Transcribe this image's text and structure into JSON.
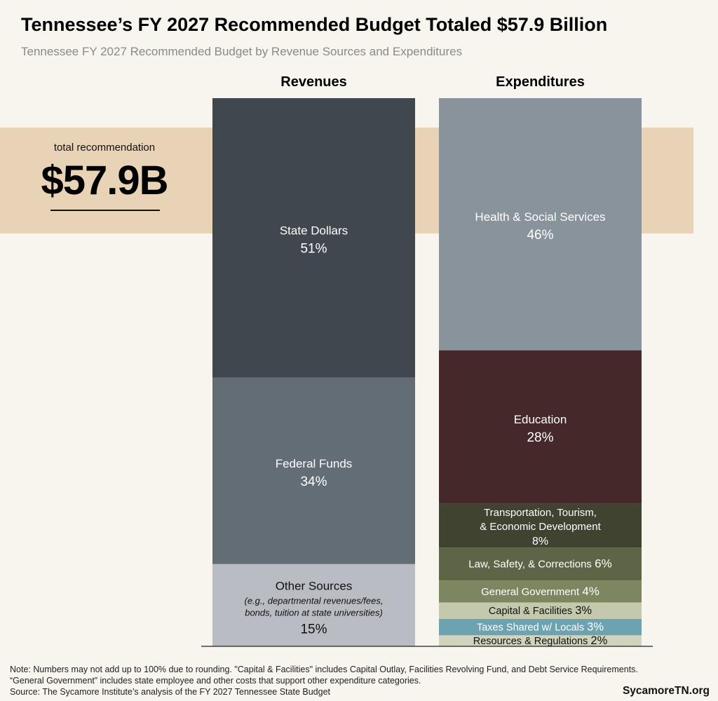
{
  "title": "Tennessee’s FY 2027 Recommended Budget Totaled $57.9 Billion",
  "subtitle": "Tennessee FY 2027 Recommended Budget by Revenue Sources and Expenditures",
  "total": {
    "label": "total recommendation",
    "value": "$57.9B"
  },
  "notes": [
    "Note: Numbers may not add up to 100% due to rounding. \"Capital & Facilities\" includes Capital Outlay, Facilities Revolving Fund, and Debt Service Requirements.",
    "“General Government” includes state employee and other costs that support other expenditure categories.",
    "Source: The Sycamore Institute’s analysis of the FY 2027 Tennessee State Budget"
  ],
  "brand": "SycamoreTN.org",
  "chart_data": {
    "type": "bar",
    "stacked": true,
    "orientation": "vertical",
    "percent_scale": 100,
    "columns": [
      {
        "name": "Revenues",
        "segments": [
          {
            "label": "State Dollars",
            "percent": 51,
            "value_label": "51%",
            "color": "#41474e"
          },
          {
            "label": "Federal Funds",
            "percent": 34,
            "value_label": "34%",
            "color": "#626d76"
          },
          {
            "label": "Other Sources",
            "sublabel": "(e.g., departmental revenues/fees, bonds, tuition at state universities)",
            "percent": 15,
            "value_label": "15%",
            "color": "#b9bcc2"
          }
        ]
      },
      {
        "name": "Expenditures",
        "segments": [
          {
            "label": "Health & Social Services",
            "percent": 46,
            "value_label": "46%",
            "color": "#89939b"
          },
          {
            "label": "Education",
            "percent": 28,
            "value_label": "28%",
            "color": "#44282a"
          },
          {
            "label": "Transportation, Tourism, & Economic Development",
            "percent": 8,
            "value_label": "8%",
            "color": "#3f4330"
          },
          {
            "label": "Law, Safety, & Corrections",
            "percent": 6,
            "value_label": "6%",
            "color": "#5e6546"
          },
          {
            "label": "General Government",
            "percent": 4,
            "value_label": "4%",
            "color": "#7c8660"
          },
          {
            "label": "Capital & Facilities",
            "percent": 3,
            "value_label": "3%",
            "color": "#c5c9ab"
          },
          {
            "label": "Taxes Shared w/ Locals",
            "percent": 3,
            "value_label": "3%",
            "color": "#6da3b1"
          },
          {
            "label": "Resources & Regulations",
            "percent": 2,
            "value_label": "2%",
            "color": "#d1d4bd"
          }
        ]
      }
    ]
  }
}
